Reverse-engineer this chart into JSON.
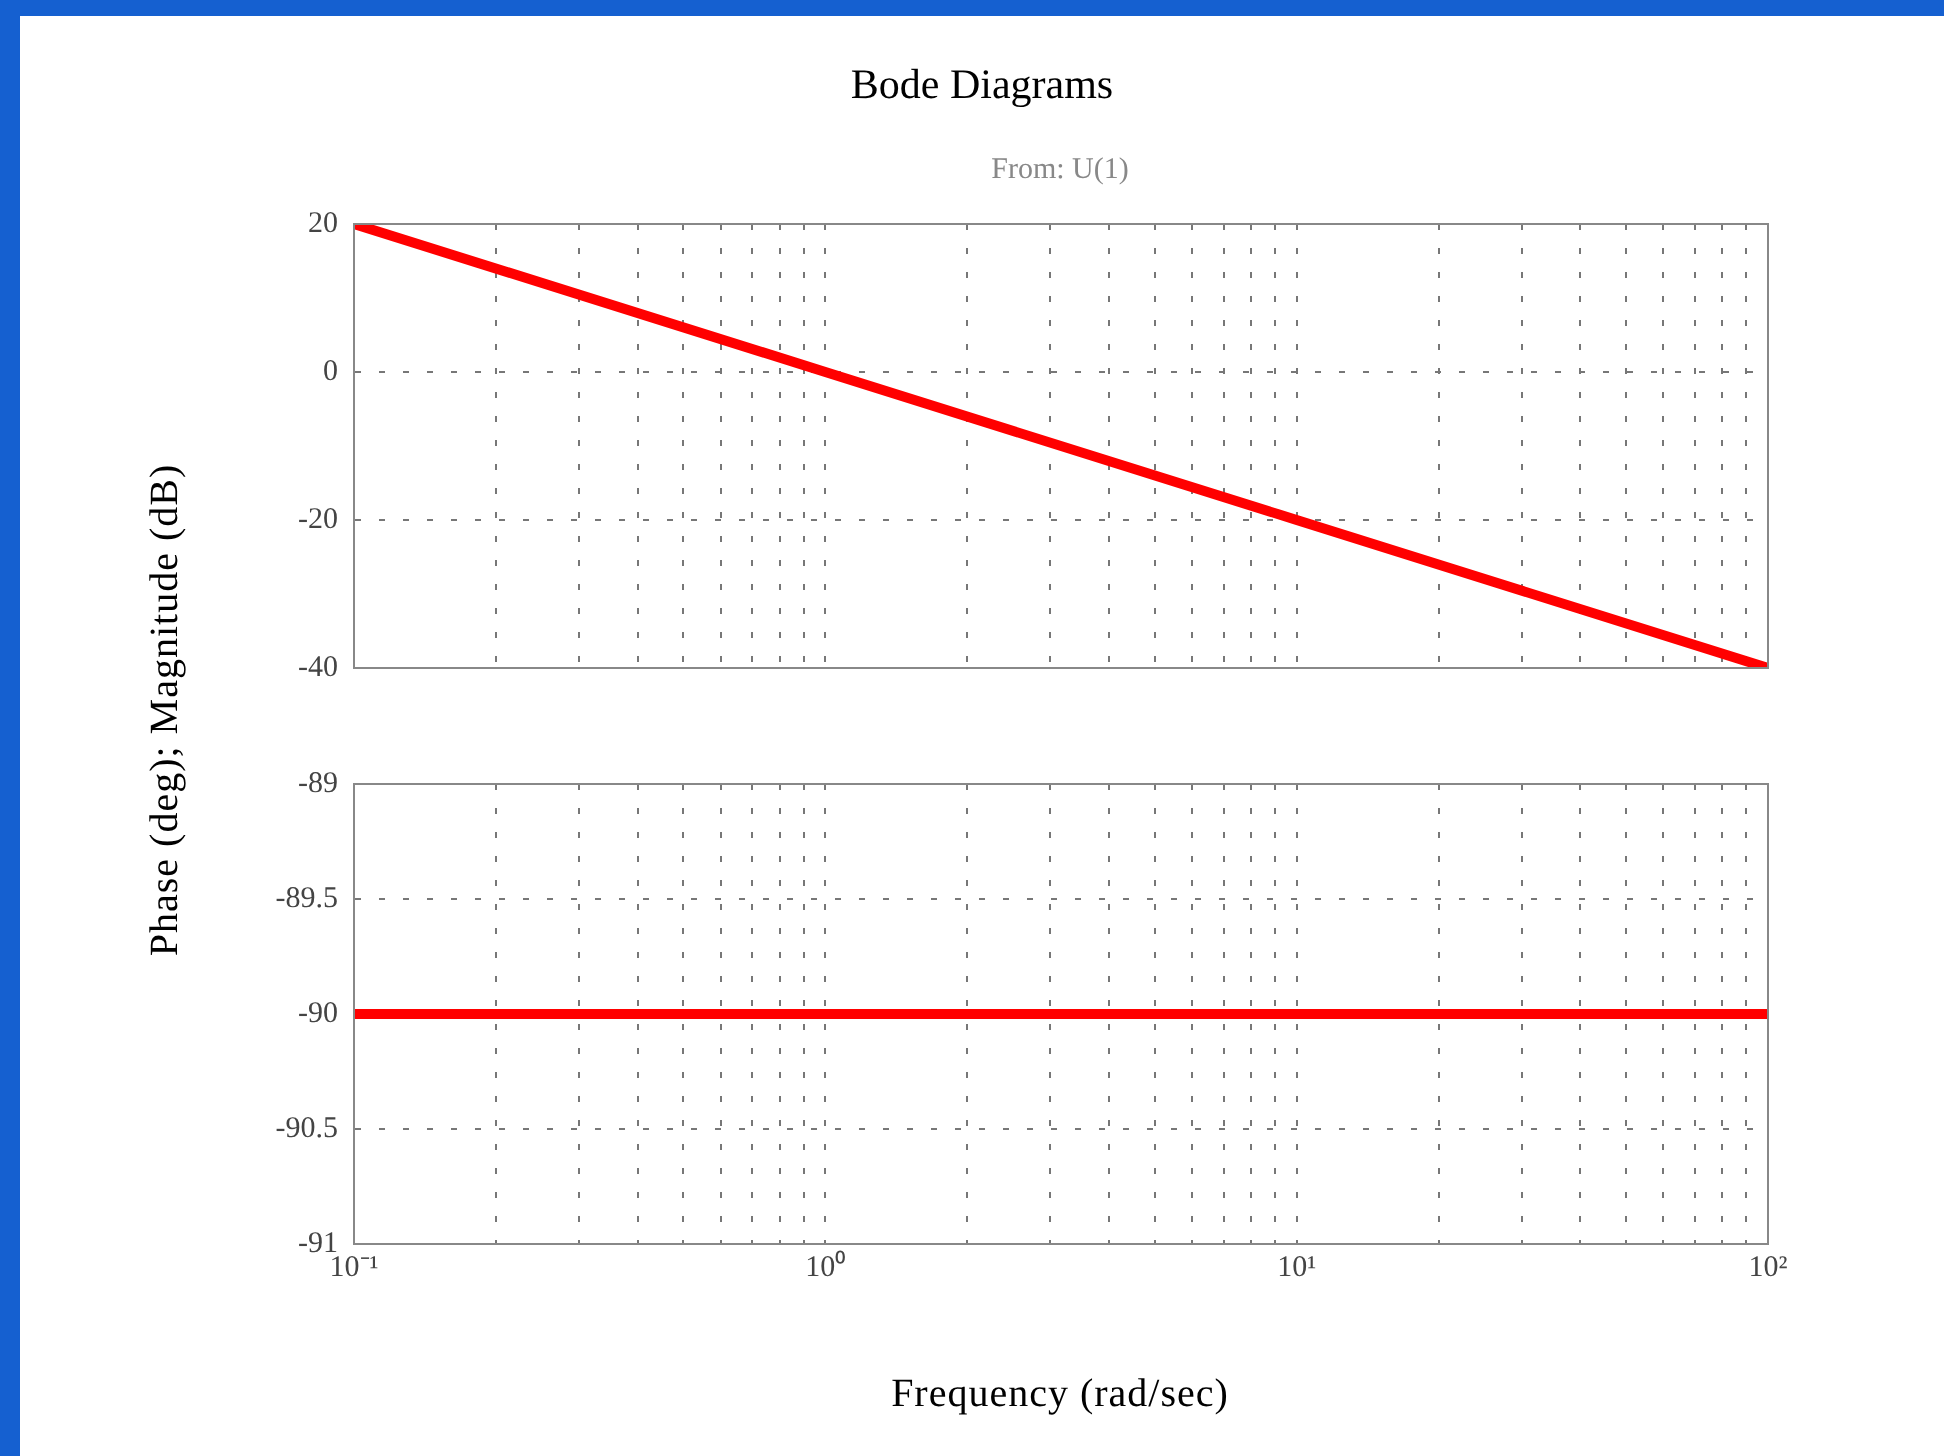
{
  "chart_data": [
    {
      "type": "line",
      "title": "Bode Diagrams",
      "subtitle": "From: U(1)",
      "ylabel": "Phase (deg); Magnitude (dB)",
      "log": "x",
      "grid": true,
      "tick_labels": "y",
      "x": [
        0.1,
        1,
        10,
        100
      ],
      "series": [
        {
          "color": "#ff0000",
          "values": [
            20,
            0,
            -20,
            -40
          ]
        }
      ],
      "xlim": [
        0.1,
        100
      ],
      "ylim": [
        -40,
        20
      ],
      "yticks": [
        -40,
        -20,
        0,
        20
      ],
      "xticks": [
        {
          "value": 0.1,
          "label": null
        },
        {
          "value": 0.2,
          "label": null
        },
        {
          "value": 0.3,
          "label": null
        },
        {
          "value": 0.4,
          "label": null
        },
        {
          "value": 0.5,
          "label": null
        },
        {
          "value": 0.6,
          "label": null
        },
        {
          "value": 0.7,
          "label": null
        },
        {
          "value": 0.8,
          "label": null
        },
        {
          "value": 0.9,
          "label": null
        },
        {
          "value": 1,
          "label": null
        },
        {
          "value": 2,
          "label": null
        },
        {
          "value": 3,
          "label": null
        },
        {
          "value": 4,
          "label": null
        },
        {
          "value": 5,
          "label": null
        },
        {
          "value": 6,
          "label": null
        },
        {
          "value": 7,
          "label": null
        },
        {
          "value": 8,
          "label": null
        },
        {
          "value": 9,
          "label": null
        },
        {
          "value": 10,
          "label": null
        },
        {
          "value": 20,
          "label": null
        },
        {
          "value": 30,
          "label": null
        },
        {
          "value": 40,
          "label": null
        },
        {
          "value": 50,
          "label": null
        },
        {
          "value": 60,
          "label": null
        },
        {
          "value": 70,
          "label": null
        },
        {
          "value": 80,
          "label": null
        },
        {
          "value": 90,
          "label": null
        },
        {
          "value": 100,
          "label": null
        }
      ]
    },
    {
      "type": "line",
      "xlabel": "Frequency (rad/sec)",
      "log": "x",
      "grid": true,
      "x": [
        0.1,
        100
      ],
      "series": [
        {
          "color": "#ff0000",
          "values": [
            -90,
            -90
          ]
        }
      ],
      "xlim": [
        0.1,
        100
      ],
      "ylim": [
        -91,
        -89
      ],
      "yticks": [
        -91,
        -90.5,
        -90,
        -89.5,
        -89
      ],
      "xticks": [
        {
          "value": 0.1,
          "label": "10⁻¹"
        },
        {
          "value": 0.2,
          "label": null
        },
        {
          "value": 0.3,
          "label": null
        },
        {
          "value": 0.4,
          "label": null
        },
        {
          "value": 0.5,
          "label": null
        },
        {
          "value": 0.6,
          "label": null
        },
        {
          "value": 0.7,
          "label": null
        },
        {
          "value": 0.8,
          "label": null
        },
        {
          "value": 0.9,
          "label": null
        },
        {
          "value": 1,
          "label": "10⁰"
        },
        {
          "value": 2,
          "label": null
        },
        {
          "value": 3,
          "label": null
        },
        {
          "value": 4,
          "label": null
        },
        {
          "value": 5,
          "label": null
        },
        {
          "value": 6,
          "label": null
        },
        {
          "value": 7,
          "label": null
        },
        {
          "value": 8,
          "label": null
        },
        {
          "value": 9,
          "label": null
        },
        {
          "value": 10,
          "label": "10¹"
        },
        {
          "value": 20,
          "label": null
        },
        {
          "value": 30,
          "label": null
        },
        {
          "value": 40,
          "label": null
        },
        {
          "value": 50,
          "label": null
        },
        {
          "value": 60,
          "label": null
        },
        {
          "value": 70,
          "label": null
        },
        {
          "value": 80,
          "label": null
        },
        {
          "value": 90,
          "label": null
        },
        {
          "value": 100,
          "label": "10²"
        }
      ]
    }
  ]
}
